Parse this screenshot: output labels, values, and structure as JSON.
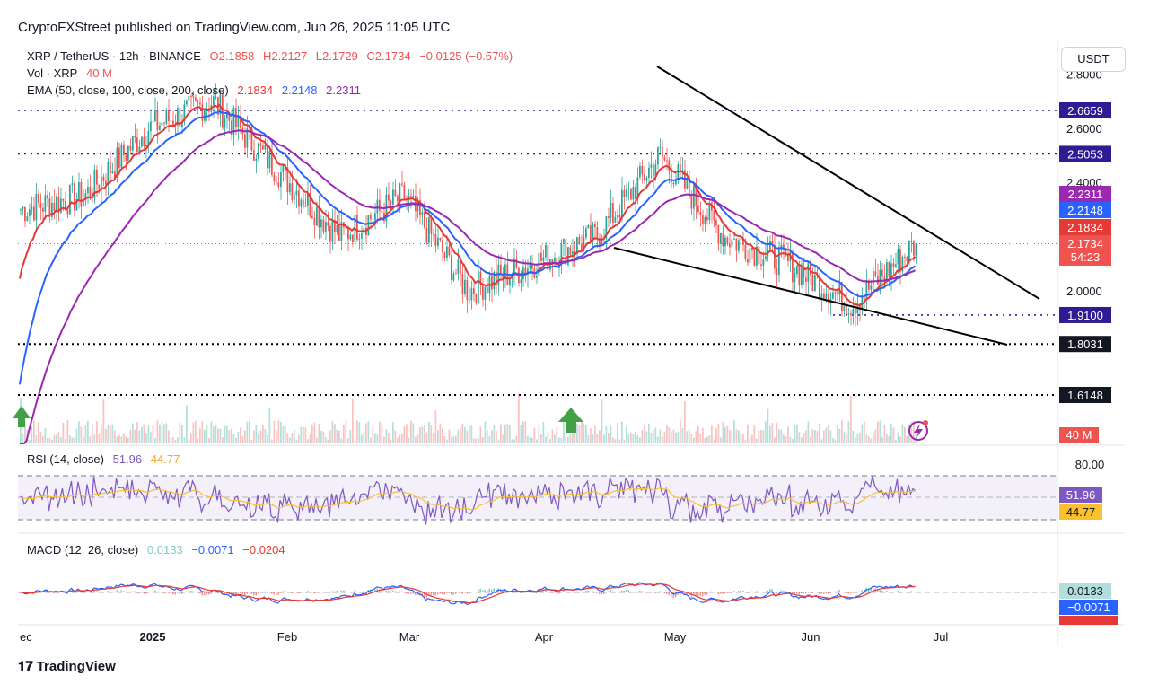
{
  "header": {
    "published": "CryptoFXStreet published on TradingView.com, Jun 26, 2025 11:05 UTC"
  },
  "legend": {
    "symbol": "XRP / TetherUS · 12h · BINANCE",
    "open": "O2.1858",
    "high": "H2.2127",
    "low": "L2.1729",
    "close": "C2.1734",
    "change": "−0.0125 (−0.57%)",
    "vol_label": "Vol · XRP",
    "vol_value": "40 M",
    "ema_label": "EMA (50, close, 100, close, 200, close)",
    "ema50": "2.1834",
    "ema100": "2.2148",
    "ema200": "2.2311"
  },
  "rsi_legend": {
    "label": "RSI (14, close)",
    "rsi": "51.96",
    "ma": "44.77"
  },
  "macd_legend": {
    "label": "MACD (12, 26, close)",
    "hist": "0.0133",
    "macd": "−0.0071",
    "signal": "−0.0204"
  },
  "unit": "USDT",
  "footer": {
    "brand": "TradingView"
  },
  "colors": {
    "up": "#26a69a",
    "down": "#ef5350",
    "ema50": "#e53935",
    "ema100": "#2962ff",
    "ema200": "#9c27b0",
    "level": "#311b92",
    "rsi": "#7e57c2",
    "rsi_ma": "#fbc02d"
  },
  "chart_data": {
    "type": "candlestick",
    "timeframe": "12h",
    "x_labels": [
      "ec",
      "2025",
      "Feb",
      "Mar",
      "Apr",
      "May",
      "Jun",
      "Jul"
    ],
    "price_axis_ticks": [
      "2.8000",
      "2.6000",
      "2.4000",
      "2.0000"
    ],
    "price_range": [
      1.5,
      2.85
    ],
    "horizontal_levels": [
      {
        "value": 2.6659,
        "label": "2.6659",
        "style": "dotted"
      },
      {
        "value": 2.5053,
        "label": "2.5053",
        "style": "dotted"
      },
      {
        "value": 1.91,
        "label": "1.9100",
        "style": "dotted"
      },
      {
        "value": 1.8031,
        "label": "1.8031",
        "style": "dotted"
      },
      {
        "value": 1.6148,
        "label": "1.6148",
        "style": "dotted"
      }
    ],
    "price_labels": [
      {
        "value": 2.2311,
        "label": "2.2311",
        "color": "#9c27b0"
      },
      {
        "value": 2.2148,
        "label": "2.2148",
        "color": "#2962ff"
      },
      {
        "value": 2.1834,
        "label": "2.1834",
        "color": "#e53935"
      },
      {
        "value": 2.1734,
        "label": "2.1734",
        "sub": "54:23",
        "color": "#ef5350"
      }
    ],
    "volume_label": "40 M",
    "ohlc_last": {
      "open": 2.1858,
      "high": 2.2127,
      "low": 2.1729,
      "close": 2.1734
    },
    "rsi": {
      "value": 51.96,
      "ma": 44.77,
      "tick": "80.00"
    },
    "macd": {
      "hist": 0.0133,
      "macd": -0.0071,
      "signal": -0.0204
    },
    "series_approx": [
      {
        "x": "Dec",
        "close": 2.3
      },
      {
        "x": "2025",
        "close": 2.35
      },
      {
        "x": "Jan",
        "close": 2.6
      },
      {
        "x": "Feb",
        "close": 2.7
      },
      {
        "x": "Feb2",
        "close": 2.45
      },
      {
        "x": "Mar",
        "close": 2.2
      },
      {
        "x": "Mar2",
        "close": 2.35
      },
      {
        "x": "Apr",
        "close": 2.0
      },
      {
        "x": "Apr2",
        "close": 2.1
      },
      {
        "x": "May",
        "close": 2.2
      },
      {
        "x": "May2",
        "close": 2.5
      },
      {
        "x": "Jun",
        "close": 2.2
      },
      {
        "x": "Jun2",
        "close": 2.1
      },
      {
        "x": "Jun3",
        "close": 1.95
      },
      {
        "x": "Jun26",
        "close": 2.1734
      }
    ]
  }
}
